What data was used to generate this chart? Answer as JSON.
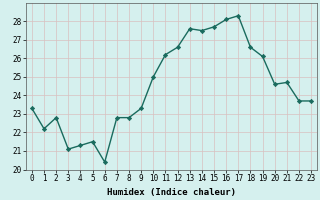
{
  "x": [
    0,
    1,
    2,
    3,
    4,
    5,
    6,
    7,
    8,
    9,
    10,
    11,
    12,
    13,
    14,
    15,
    16,
    17,
    18,
    19,
    20,
    21,
    22,
    23
  ],
  "y": [
    23.3,
    22.2,
    22.8,
    21.1,
    21.3,
    21.5,
    20.4,
    22.8,
    22.8,
    23.3,
    25.0,
    26.2,
    26.6,
    27.6,
    27.5,
    27.7,
    28.1,
    28.3,
    26.6,
    26.1,
    24.6,
    24.7,
    23.7,
    23.7
  ],
  "line_color": "#1a6b5e",
  "marker": "D",
  "marker_size": 2.2,
  "bg_color": "#d5f0ee",
  "grid_color": "#d9c0c0",
  "xlabel": "Humidex (Indice chaleur)",
  "ylim": [
    20,
    29
  ],
  "xlim": [
    -0.5,
    23.5
  ],
  "yticks": [
    20,
    21,
    22,
    23,
    24,
    25,
    26,
    27,
    28
  ],
  "xticks": [
    0,
    1,
    2,
    3,
    4,
    5,
    6,
    7,
    8,
    9,
    10,
    11,
    12,
    13,
    14,
    15,
    16,
    17,
    18,
    19,
    20,
    21,
    22,
    23
  ],
  "xlabel_fontsize": 6.5,
  "tick_fontsize": 5.5,
  "line_width": 1.0,
  "spine_color": "#555555"
}
